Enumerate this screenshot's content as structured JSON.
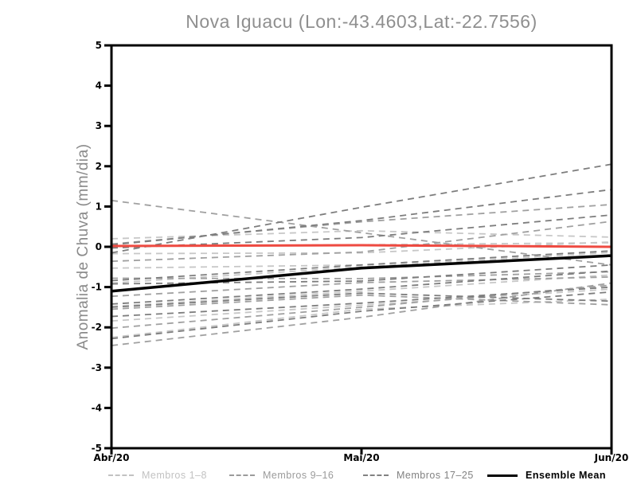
{
  "chart_data": {
    "type": "line",
    "title": "Nova Iguacu (Lon:-43.4603,Lat:-22.7556)",
    "xlabel": "",
    "ylabel": "Anomalia de Chuva (mm/dia)",
    "x_categories": [
      "Abr/20",
      "Mai/20",
      "Jun/20"
    ],
    "ylim": [
      -5,
      5
    ],
    "yticks": [
      5,
      4,
      3,
      2,
      1,
      0,
      -1,
      -2,
      -3,
      -4,
      -5
    ],
    "grid": false,
    "legend_position": "bottom",
    "line_style_members": "dashed",
    "reference_line": {
      "name": "zero-anomaly-reference",
      "color": "#ee4a41",
      "values": [
        0.02,
        0.04,
        0.0
      ]
    },
    "ensemble_mean": {
      "name": "Ensemble Mean",
      "color": "#000000",
      "values": [
        -1.1,
        -0.53,
        -0.22
      ]
    },
    "member_groups": [
      {
        "name": "Membros 1–8",
        "color": "#c7c7c7",
        "members": [
          [
            0.2,
            0.4,
            0.24
          ],
          [
            -0.17,
            -0.15,
            0.12
          ],
          [
            -0.53,
            -0.45,
            -0.1
          ],
          [
            -0.9,
            -0.5,
            -0.14
          ],
          [
            -1.48,
            -1.1,
            -0.7
          ],
          [
            -1.84,
            -1.45,
            -1.05
          ],
          [
            -2.25,
            -1.55,
            -1.3
          ],
          [
            0.02,
            0.05,
            0.1
          ]
        ]
      },
      {
        "name": "Membros 9–16",
        "color": "#a0a0a0",
        "members": [
          [
            1.15,
            0.35,
            -0.45
          ],
          [
            0.07,
            0.62,
            1.05
          ],
          [
            -0.36,
            -0.13,
            0.63
          ],
          [
            -0.78,
            -0.79,
            -0.62
          ],
          [
            -1.23,
            -0.89,
            -0.75
          ],
          [
            -1.55,
            -1.2,
            -1.44
          ],
          [
            -2.02,
            -1.5,
            -0.95
          ],
          [
            -2.45,
            -1.75,
            -0.9
          ]
        ]
      },
      {
        "name": "Membros 17–25",
        "color": "#7d7d7d",
        "members": [
          [
            -0.15,
            0.98,
            2.05
          ],
          [
            0.05,
            0.65,
            1.42
          ],
          [
            -0.03,
            0.23,
            0.79
          ],
          [
            -0.84,
            -0.45,
            -0.1
          ],
          [
            -0.92,
            -0.85,
            -0.45
          ],
          [
            -1.42,
            -1.05,
            -0.6
          ],
          [
            -1.5,
            -1.15,
            -1.35
          ],
          [
            -1.73,
            -1.4,
            -1.0
          ],
          [
            -2.28,
            -1.6,
            -1.12
          ]
        ]
      }
    ]
  },
  "legend": {
    "items": [
      {
        "label": "Membros 1–8",
        "color": "#c2c2c2",
        "style": "dashed"
      },
      {
        "label": "Membros 9–16",
        "color": "#9b9b9b",
        "style": "dashed"
      },
      {
        "label": "Membros 17–25",
        "color": "#828282",
        "style": "dashed"
      },
      {
        "label": "Ensemble Mean",
        "color": "#000000",
        "style": "solid"
      }
    ]
  }
}
